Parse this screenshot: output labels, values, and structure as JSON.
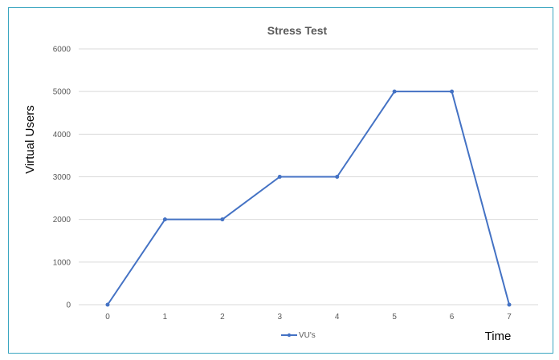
{
  "chart_data": {
    "type": "line",
    "title": "Stress Test",
    "xlabel": "Time",
    "ylabel": "Virtual Users",
    "categories": [
      "0",
      "1",
      "2",
      "3",
      "4",
      "5",
      "6",
      "7"
    ],
    "series": [
      {
        "name": "VU's",
        "color": "#4472c4",
        "values": [
          0,
          2000,
          2000,
          3000,
          3000,
          5000,
          5000,
          0
        ]
      }
    ],
    "yticks": [
      0,
      1000,
      2000,
      3000,
      4000,
      5000,
      6000
    ],
    "ylim": [
      0,
      6000
    ],
    "grid": true,
    "legend_position": "bottom"
  },
  "colors": {
    "frame_border": "#3aa6c0",
    "gridline": "#d9d9d9",
    "series": "#4472c4"
  }
}
